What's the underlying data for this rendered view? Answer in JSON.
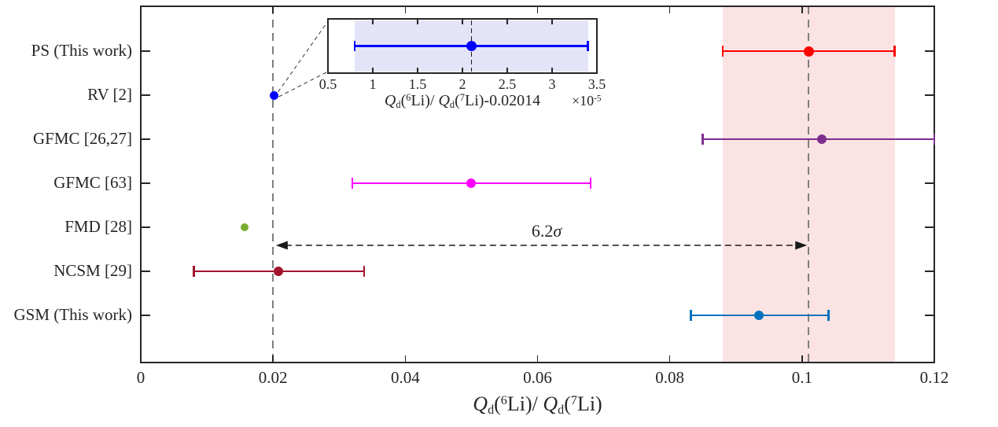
{
  "chart_data": {
    "type": "scatter",
    "subtype": "horizontal-errorbar-comparison",
    "title": "",
    "xlabel": "Q_d(6Li)/ Q_d(7Li)",
    "xlabel_tokens": [
      {
        "t": "Q",
        "f": "i"
      },
      {
        "t": "d",
        "f": "sub"
      },
      {
        "t": "(",
        "f": "n"
      },
      {
        "t": "6",
        "f": "sup"
      },
      {
        "t": "Li)/ ",
        "f": "n"
      },
      {
        "t": "Q",
        "f": "i"
      },
      {
        "t": "d",
        "f": "sub"
      },
      {
        "t": "(",
        "f": "n"
      },
      {
        "t": "7",
        "f": "sup"
      },
      {
        "t": "Li)",
        "f": "n"
      }
    ],
    "xlim": [
      0,
      0.12
    ],
    "xtick_values": [
      0,
      0.02,
      0.04,
      0.06,
      0.08,
      0.1,
      0.12
    ],
    "xtick_labels": [
      "0",
      "0.02",
      "0.04",
      "0.06",
      "0.08",
      "0.1",
      "0.12"
    ],
    "grid": false,
    "legend": null,
    "categories": [
      "PS (This work)",
      "RV [2]",
      "GFMC [26,27]",
      "GFMC [63]",
      "FMD [28]",
      "NCSM [29]",
      "GSM (This work)"
    ],
    "series": [
      {
        "label": "PS (This work)",
        "value": 0.101,
        "err_minus": 0.013,
        "err_plus": 0.013,
        "color": "#ff0000"
      },
      {
        "label": "RV [2]",
        "value": 0.02016,
        "err_minus": 1.3e-05,
        "err_plus": 1.3e-05,
        "color": "#0000ff"
      },
      {
        "label": "GFMC [26,27]",
        "value": 0.103,
        "err_minus": 0.018,
        "err_plus": 0.017,
        "color": "#7e2f8e"
      },
      {
        "label": "GFMC [63]",
        "value": 0.05,
        "err_minus": 0.018,
        "err_plus": 0.018,
        "color": "#ff00ff"
      },
      {
        "label": "FMD [28]",
        "value": 0.0157,
        "err_minus": 0,
        "err_plus": 0,
        "color": "#77ac30"
      },
      {
        "label": "NCSM [29]",
        "value": 0.0208,
        "err_minus": 0.0128,
        "err_plus": 0.013,
        "color": "#a2142f"
      },
      {
        "label": "GSM (This work)",
        "value": 0.0935,
        "err_minus": 0.0103,
        "err_plus": 0.0105,
        "color": "#0072bd"
      }
    ],
    "reference_lines": [
      {
        "x": 0.02,
        "style": "dashed",
        "color": "#7f7f7f"
      },
      {
        "x": 0.101,
        "style": "dashed",
        "color": "#7f7f7f"
      }
    ],
    "shaded_band": {
      "from": 0.088,
      "to": 0.114,
      "color": "#fce3e3"
    },
    "annotation": {
      "label_tokens": [
        {
          "t": "6.2",
          "f": "n"
        },
        {
          "t": "σ",
          "f": "i"
        }
      ],
      "label_text": "6.2σ",
      "arrow_from_x": 0.0202,
      "arrow_to_x": 0.101,
      "style": "dashed-double-arrow"
    },
    "inset": {
      "source_category": "RV [2]",
      "xlim": [
        0.5,
        3.5
      ],
      "xtick_values": [
        0.5,
        1,
        1.5,
        2,
        2.5,
        3,
        3.5
      ],
      "xtick_labels": [
        "0.5",
        "1",
        "1.5",
        "2",
        "2.5",
        "3",
        "3.5"
      ],
      "xlabel": "Q_d(6Li)/ Q_d(7Li)-0.02014",
      "xlabel_tokens": [
        {
          "t": "Q",
          "f": "i"
        },
        {
          "t": "d",
          "f": "sub"
        },
        {
          "t": "(",
          "f": "n"
        },
        {
          "t": "6",
          "f": "sup"
        },
        {
          "t": "Li)/ ",
          "f": "n"
        },
        {
          "t": "Q",
          "f": "i"
        },
        {
          "t": "d",
          "f": "sub"
        },
        {
          "t": "(",
          "f": "n"
        },
        {
          "t": "7",
          "f": "sup"
        },
        {
          "t": "Li)-0.02014",
          "f": "n"
        }
      ],
      "scale_label": "×10⁻⁵",
      "scale_label_tokens": [
        {
          "t": "×10",
          "f": "n"
        },
        {
          "t": "-5",
          "f": "sup"
        }
      ],
      "point": {
        "value": 2.1,
        "err_minus": 1.3,
        "err_plus": 1.3,
        "color": "#0000ff"
      },
      "band": {
        "from": 0.8,
        "to": 3.4,
        "color": "#e4e4f9"
      },
      "dashed_line_x": 2.1
    },
    "frame_color": "#262626"
  }
}
